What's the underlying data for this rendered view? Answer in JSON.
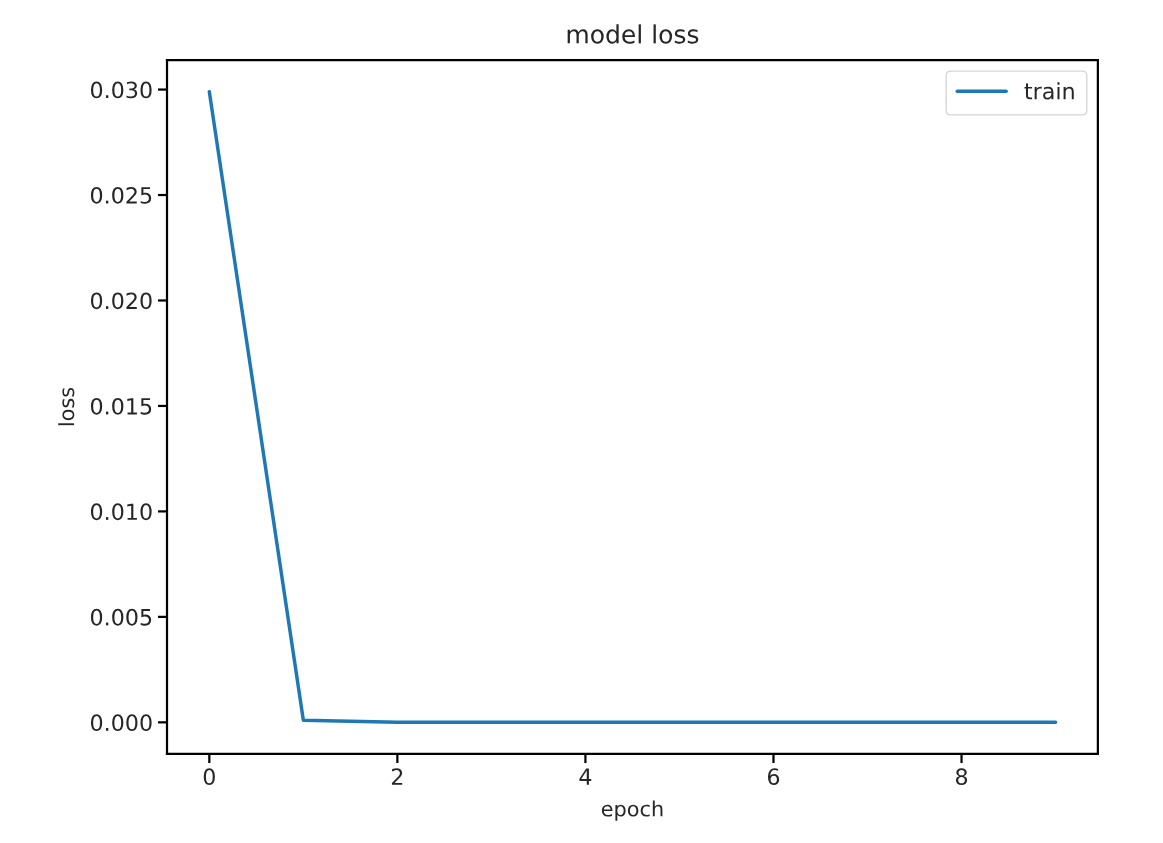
{
  "chart_data": {
    "type": "line",
    "title": "model loss",
    "xlabel": "epoch",
    "ylabel": "loss",
    "x": [
      0,
      1,
      2,
      3,
      4,
      5,
      6,
      7,
      8,
      9
    ],
    "series": [
      {
        "name": "train",
        "color": "#1f77b4",
        "values": [
          0.0299,
          0.0001,
          0.0,
          0.0,
          0.0,
          0.0,
          0.0,
          0.0,
          0.0,
          0.0
        ]
      }
    ],
    "xlim": [
      -0.45,
      9.45
    ],
    "xticks": [
      0,
      2,
      4,
      6,
      8
    ],
    "ylim": [
      -0.0015,
      0.0314
    ],
    "yticks": [
      {
        "value": 0.0,
        "label": "0.000"
      },
      {
        "value": 0.005,
        "label": "0.005"
      },
      {
        "value": 0.01,
        "label": "0.010"
      },
      {
        "value": 0.015,
        "label": "0.015"
      },
      {
        "value": 0.02,
        "label": "0.020"
      },
      {
        "value": 0.025,
        "label": "0.025"
      },
      {
        "value": 0.03,
        "label": "0.030"
      }
    ],
    "legend": "top right",
    "grid": false
  }
}
